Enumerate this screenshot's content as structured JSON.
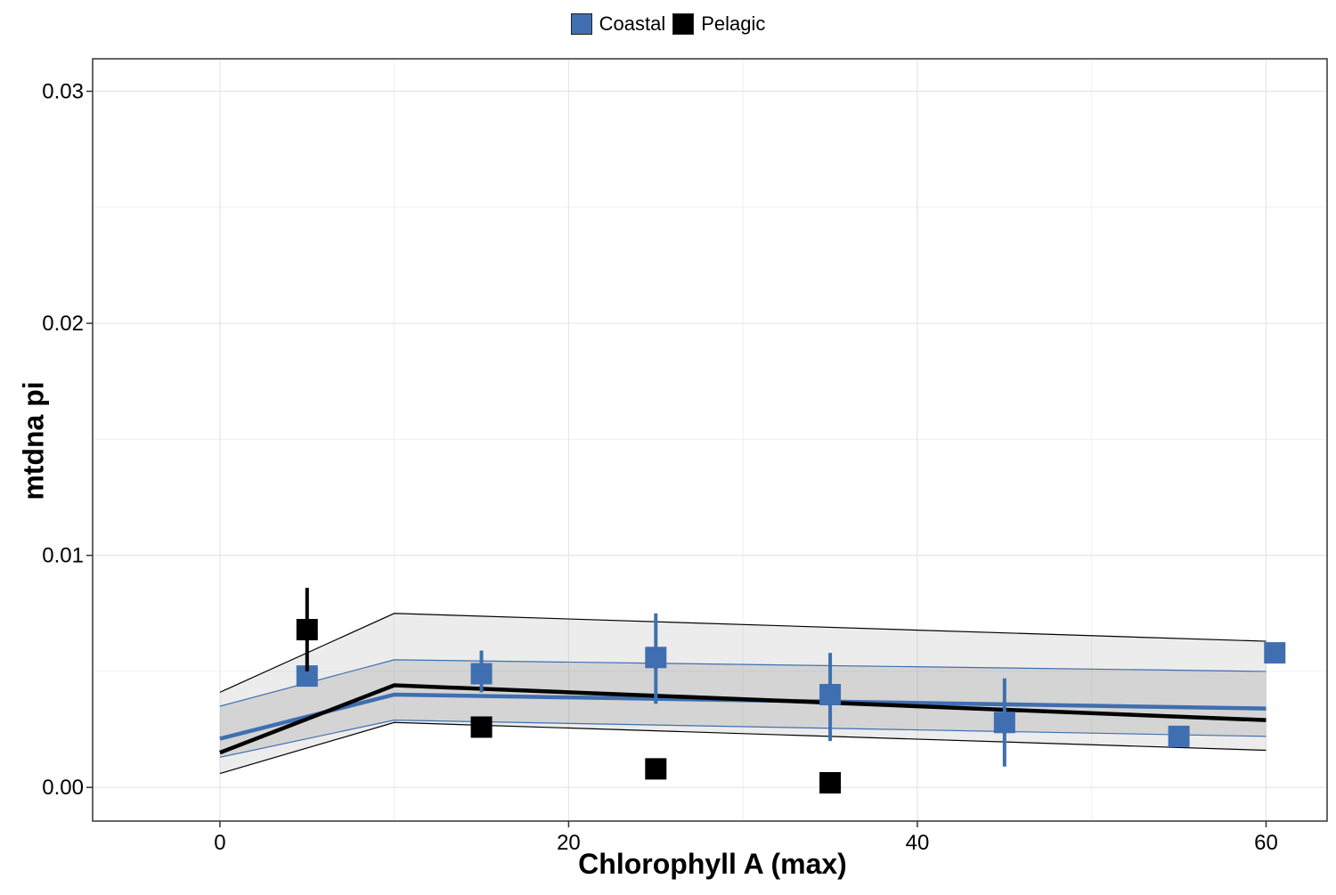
{
  "chart_data": {
    "type": "scatter",
    "title": "",
    "xlabel": "Chlorophyll A (max)",
    "ylabel": "mtdna pi",
    "xlim": [
      -7.3,
      63.5
    ],
    "ylim": [
      -0.00145,
      0.0314
    ],
    "x_ticks": [
      0,
      20,
      40,
      60
    ],
    "x_tick_labels": [
      "0",
      "20",
      "40",
      "60"
    ],
    "y_ticks": [
      0.0,
      0.01,
      0.02,
      0.03
    ],
    "y_tick_labels": [
      "0.00",
      "0.01",
      "0.02",
      "0.03"
    ],
    "grid": true,
    "legend_position": "top",
    "series": [
      {
        "name": "Coastal",
        "color": "#3f6fb0",
        "points": [
          {
            "x": 5,
            "y": 0.0048,
            "ymin": 0.0048,
            "ymax": 0.0048
          },
          {
            "x": 15,
            "y": 0.0049,
            "ymin": 0.0041,
            "ymax": 0.0059
          },
          {
            "x": 25,
            "y": 0.0056,
            "ymin": 0.0036,
            "ymax": 0.0075
          },
          {
            "x": 35,
            "y": 0.004,
            "ymin": 0.002,
            "ymax": 0.0058
          },
          {
            "x": 45,
            "y": 0.0028,
            "ymin": 0.0009,
            "ymax": 0.0047
          },
          {
            "x": 55,
            "y": 0.0022,
            "ymin": 0.0022,
            "ymax": 0.0022
          },
          {
            "x": 60.5,
            "y": 0.0058,
            "ymin": 0.0058,
            "ymax": 0.0058
          }
        ],
        "fit": {
          "x": [
            0,
            10,
            60
          ],
          "y": [
            0.0021,
            0.004,
            0.0034
          ],
          "lower": [
            0.0013,
            0.0029,
            0.0022
          ],
          "upper": [
            0.0035,
            0.0055,
            0.005
          ]
        }
      },
      {
        "name": "Pelagic",
        "color": "#000000",
        "points": [
          {
            "x": 5,
            "y": 0.0068,
            "ymin": 0.005,
            "ymax": 0.0086
          },
          {
            "x": 15,
            "y": 0.0026,
            "ymin": 0.0026,
            "ymax": 0.0026
          },
          {
            "x": 25,
            "y": 0.0008,
            "ymin": 0.0008,
            "ymax": 0.0008
          },
          {
            "x": 35,
            "y": 0.0002,
            "ymin": 0.0002,
            "ymax": 0.0002
          }
        ],
        "fit": {
          "x": [
            0,
            10,
            60
          ],
          "y": [
            0.0015,
            0.0044,
            0.0029
          ],
          "lower": [
            0.0006,
            0.0028,
            0.0016
          ],
          "upper": [
            0.0041,
            0.0075,
            0.0063
          ]
        }
      }
    ]
  }
}
